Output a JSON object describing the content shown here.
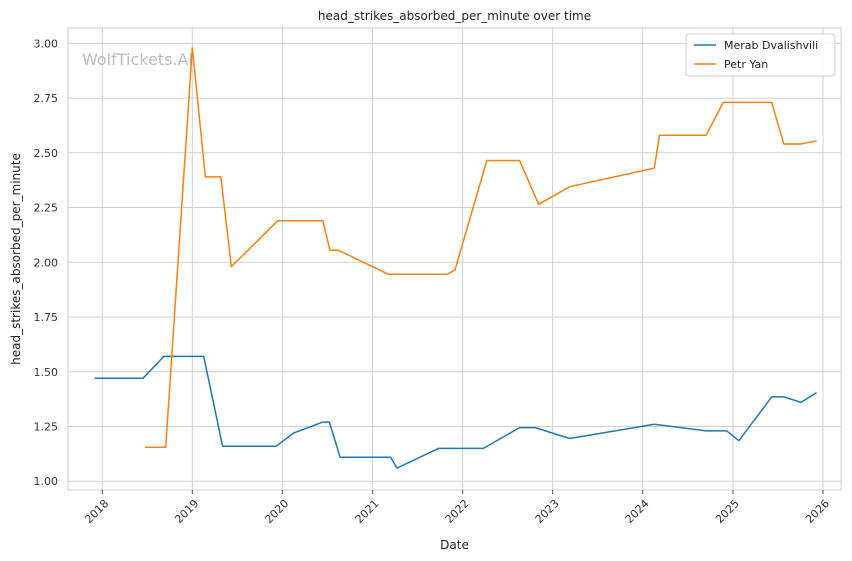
{
  "chart_data": {
    "type": "line",
    "title": "head_strikes_absorbed_per_minute over time",
    "xlabel": "Date",
    "ylabel": "head_strikes_absorbed_per_minute",
    "watermark": "WolfTickets.AI",
    "x_ticks": [
      "2018",
      "2019",
      "2020",
      "2021",
      "2022",
      "2023",
      "2024",
      "2025",
      "2026"
    ],
    "y_ticks": [
      "1.00",
      "1.25",
      "1.50",
      "1.75",
      "2.00",
      "2.25",
      "2.50",
      "2.75",
      "3.00"
    ],
    "xlim": [
      "2017-08-15",
      "2026-03-15"
    ],
    "ylim": [
      0.96,
      3.07
    ],
    "grid": true,
    "legend_position": "top-right",
    "series": [
      {
        "name": "Merab Dvalishvili",
        "color": "#1f77b4",
        "points": [
          [
            "2017-12-01",
            1.47
          ],
          [
            "2018-06-15",
            1.47
          ],
          [
            "2018-09-08",
            1.57
          ],
          [
            "2019-02-16",
            1.57
          ],
          [
            "2019-05-04",
            1.16
          ],
          [
            "2019-12-07",
            1.16
          ],
          [
            "2020-02-15",
            1.22
          ],
          [
            "2020-06-13",
            1.27
          ],
          [
            "2020-07-10",
            1.27
          ],
          [
            "2020-08-22",
            1.11
          ],
          [
            "2021-03-15",
            1.11
          ],
          [
            "2021-04-10",
            1.06
          ],
          [
            "2021-09-25",
            1.15
          ],
          [
            "2022-03-26",
            1.15
          ],
          [
            "2022-08-20",
            1.245
          ],
          [
            "2022-10-22",
            1.245
          ],
          [
            "2023-03-11",
            1.195
          ],
          [
            "2024-02-17",
            1.26
          ],
          [
            "2024-09-14",
            1.23
          ],
          [
            "2024-12-07",
            1.23
          ],
          [
            "2025-01-25",
            1.185
          ],
          [
            "2025-06-07",
            1.385
          ],
          [
            "2025-07-26",
            1.385
          ],
          [
            "2025-10-04",
            1.36
          ],
          [
            "2025-12-06",
            1.405
          ]
        ]
      },
      {
        "name": "Petr Yan",
        "color": "#ff7f0e",
        "points": [
          [
            "2018-06-23",
            1.155
          ],
          [
            "2018-09-15",
            1.155
          ],
          [
            "2019-01-01",
            2.98
          ],
          [
            "2019-02-23",
            2.39
          ],
          [
            "2019-04-27",
            2.39
          ],
          [
            "2019-06-08",
            1.98
          ],
          [
            "2019-12-14",
            2.19
          ],
          [
            "2020-06-13",
            2.19
          ],
          [
            "2020-07-12",
            2.055
          ],
          [
            "2020-08-15",
            2.055
          ],
          [
            "2021-03-06",
            1.945
          ],
          [
            "2021-10-30",
            1.945
          ],
          [
            "2021-12-01",
            1.965
          ],
          [
            "2022-04-09",
            2.465
          ],
          [
            "2022-08-20",
            2.465
          ],
          [
            "2022-11-05",
            2.265
          ],
          [
            "2023-03-11",
            2.345
          ],
          [
            "2024-02-17",
            2.43
          ],
          [
            "2024-03-09",
            2.58
          ],
          [
            "2024-09-14",
            2.58
          ],
          [
            "2024-11-23",
            2.73
          ],
          [
            "2025-06-07",
            2.73
          ],
          [
            "2025-07-26",
            2.54
          ],
          [
            "2025-10-04",
            2.54
          ],
          [
            "2025-12-06",
            2.555
          ]
        ]
      }
    ]
  }
}
